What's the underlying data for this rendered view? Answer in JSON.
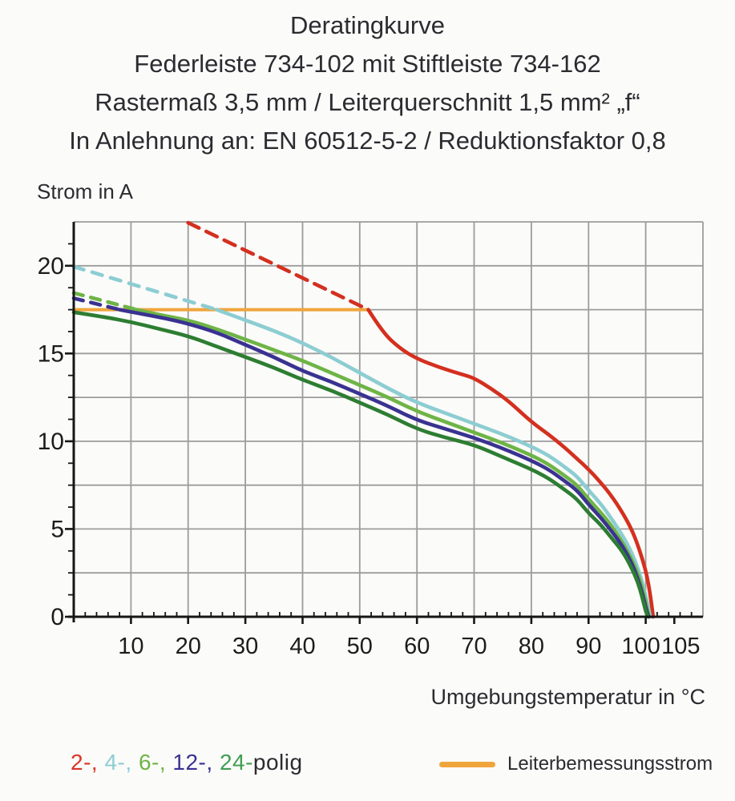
{
  "header": {
    "line1": "Deratingkurve",
    "line2": "Federleiste 734-102 mit Stiftleiste 734-162",
    "line3": "Rastermaß 3,5 mm / Leiterquerschnitt 1,5 mm² „f“",
    "line4": "In Anlehnung an: EN 60512-5-2 / Reduktionsfaktor 0,8"
  },
  "legend": {
    "pole_items": [
      {
        "label": "2-",
        "color": "#da3528"
      },
      {
        "label": "4-",
        "color": "#8ccdd2"
      },
      {
        "label": "6-",
        "color": "#6eb446"
      },
      {
        "label": "12-",
        "color": "#3a3291"
      },
      {
        "label": "24-",
        "color": "#3f9e53"
      }
    ],
    "suffix": "polig",
    "text_color": "#2b2b31",
    "rated_current_label": "Leiterbemessungsstrom"
  },
  "chart_data": {
    "type": "line",
    "xlabel": "Umgebungstemperatur in °C",
    "ylabel": "Strom in A",
    "x_range": [
      0,
      110
    ],
    "y_range": [
      0,
      22.5
    ],
    "x_ticks": [
      10,
      20,
      30,
      40,
      50,
      60,
      70,
      80,
      90,
      100,
      105
    ],
    "x_tick_dx": {
      "100": -6,
      "105": 8
    },
    "x_minor_step": 2,
    "y_ticks": [
      0,
      5,
      10,
      15,
      20
    ],
    "y_minor_step": 1.25,
    "grid_x": [
      10,
      20,
      30,
      40,
      50,
      60,
      70,
      80,
      90,
      100,
      110
    ],
    "grid_y": [
      2.5,
      5,
      7.5,
      10,
      12.5,
      15,
      17.5,
      20,
      22.5
    ],
    "grid_on": true,
    "legend_position": "bottom",
    "colors": {
      "grid": "#9c9c9c",
      "axis": "#161616",
      "tick_label": "#1c1c1c"
    },
    "rated_current_amps": 17.5,
    "series": [
      {
        "name": "Leiterbemessungsstrom",
        "color": "#f0a53c",
        "width": 4,
        "solid": [
          [
            0,
            17.5
          ],
          [
            51.5,
            17.5
          ]
        ]
      },
      {
        "name": "2-polig",
        "color": "#d4301f",
        "width": 4.6,
        "dash_pattern": "15 10",
        "dashed": [
          [
            20,
            22.45
          ],
          [
            51.5,
            17.5
          ]
        ],
        "solid": [
          [
            51.5,
            17.5
          ],
          [
            54,
            16.2
          ],
          [
            57,
            15.3
          ],
          [
            60,
            14.7
          ],
          [
            64,
            14.2
          ],
          [
            68,
            13.8
          ],
          [
            70,
            13.6
          ],
          [
            73,
            13.0
          ],
          [
            76,
            12.3
          ],
          [
            80,
            11.1
          ],
          [
            83,
            10.4
          ],
          [
            86,
            9.6
          ],
          [
            88,
            9.0
          ],
          [
            90,
            8.4
          ],
          [
            92,
            7.7
          ],
          [
            94,
            6.9
          ],
          [
            96,
            5.9
          ],
          [
            97.5,
            5.0
          ],
          [
            98.5,
            4.2
          ],
          [
            99.5,
            3.2
          ],
          [
            100.3,
            2.2
          ],
          [
            100.9,
            1.0
          ],
          [
            101.3,
            0
          ]
        ]
      },
      {
        "name": "4-polig",
        "color": "#8ccdd2",
        "width": 4.6,
        "dash_pattern": "13 11",
        "dashed": [
          [
            0,
            19.95
          ],
          [
            25,
            17.5
          ]
        ],
        "solid": [
          [
            25,
            17.5
          ],
          [
            30,
            16.9
          ],
          [
            35,
            16.3
          ],
          [
            40,
            15.6
          ],
          [
            45,
            14.8
          ],
          [
            50,
            13.9
          ],
          [
            55,
            13.0
          ],
          [
            60,
            12.2
          ],
          [
            65,
            11.6
          ],
          [
            70,
            11.0
          ],
          [
            75,
            10.4
          ],
          [
            80,
            9.7
          ],
          [
            83,
            9.2
          ],
          [
            86,
            8.5
          ],
          [
            88,
            8.0
          ],
          [
            90,
            7.2
          ],
          [
            92,
            6.5
          ],
          [
            94,
            5.6
          ],
          [
            96,
            4.6
          ],
          [
            97.5,
            3.7
          ],
          [
            98.7,
            2.7
          ],
          [
            99.7,
            1.6
          ],
          [
            100.4,
            0.6
          ],
          [
            100.8,
            0
          ]
        ]
      },
      {
        "name": "6-polig",
        "color": "#6eb446",
        "width": 4.6,
        "dash_pattern": "12 10",
        "dashed": [
          [
            0,
            18.45
          ],
          [
            11,
            17.5
          ]
        ],
        "solid": [
          [
            11,
            17.5
          ],
          [
            15,
            17.2
          ],
          [
            20,
            16.9
          ],
          [
            25,
            16.4
          ],
          [
            30,
            15.8
          ],
          [
            35,
            15.2
          ],
          [
            40,
            14.6
          ],
          [
            45,
            13.9
          ],
          [
            50,
            13.2
          ],
          [
            55,
            12.5
          ],
          [
            60,
            11.7
          ],
          [
            65,
            11.1
          ],
          [
            70,
            10.5
          ],
          [
            75,
            9.9
          ],
          [
            80,
            9.2
          ],
          [
            83,
            8.7
          ],
          [
            86,
            8.0
          ],
          [
            88,
            7.5
          ],
          [
            90,
            6.7
          ],
          [
            92,
            6.0
          ],
          [
            94,
            5.2
          ],
          [
            96,
            4.2
          ],
          [
            97.5,
            3.3
          ],
          [
            98.7,
            2.4
          ],
          [
            99.6,
            1.4
          ],
          [
            100.2,
            0.5
          ],
          [
            100.6,
            0
          ]
        ]
      },
      {
        "name": "12-polig",
        "color": "#3a3291",
        "width": 4.6,
        "dash_pattern": "12 10",
        "dashed": [
          [
            0,
            18.15
          ],
          [
            8,
            17.5
          ]
        ],
        "solid": [
          [
            8,
            17.5
          ],
          [
            12,
            17.25
          ],
          [
            16,
            17.0
          ],
          [
            20,
            16.7
          ],
          [
            25,
            16.2
          ],
          [
            30,
            15.5
          ],
          [
            35,
            14.8
          ],
          [
            40,
            14.0
          ],
          [
            45,
            13.4
          ],
          [
            50,
            12.7
          ],
          [
            55,
            12.0
          ],
          [
            60,
            11.2
          ],
          [
            65,
            10.7
          ],
          [
            70,
            10.2
          ],
          [
            75,
            9.6
          ],
          [
            80,
            8.9
          ],
          [
            83,
            8.4
          ],
          [
            86,
            7.7
          ],
          [
            88,
            7.2
          ],
          [
            90,
            6.4
          ],
          [
            92,
            5.7
          ],
          [
            94,
            4.9
          ],
          [
            96,
            4.0
          ],
          [
            97.5,
            3.1
          ],
          [
            98.6,
            2.2
          ],
          [
            99.5,
            1.2
          ],
          [
            100.1,
            0.4
          ],
          [
            100.5,
            0
          ]
        ]
      },
      {
        "name": "24-polig",
        "color": "#2d7d32",
        "width": 4.6,
        "solid": [
          [
            0,
            17.35
          ],
          [
            5,
            17.1
          ],
          [
            10,
            16.8
          ],
          [
            15,
            16.4
          ],
          [
            20,
            16.0
          ],
          [
            25,
            15.4
          ],
          [
            30,
            14.8
          ],
          [
            35,
            14.2
          ],
          [
            40,
            13.5
          ],
          [
            45,
            12.9
          ],
          [
            50,
            12.2
          ],
          [
            55,
            11.5
          ],
          [
            60,
            10.7
          ],
          [
            65,
            10.2
          ],
          [
            70,
            9.8
          ],
          [
            75,
            9.1
          ],
          [
            80,
            8.4
          ],
          [
            83,
            7.9
          ],
          [
            86,
            7.2
          ],
          [
            88,
            6.7
          ],
          [
            90,
            5.9
          ],
          [
            92,
            5.3
          ],
          [
            94,
            4.5
          ],
          [
            96,
            3.7
          ],
          [
            97.5,
            2.8
          ],
          [
            98.6,
            2.0
          ],
          [
            99.4,
            1.1
          ],
          [
            100,
            0.3
          ],
          [
            100.4,
            0
          ]
        ]
      }
    ]
  }
}
